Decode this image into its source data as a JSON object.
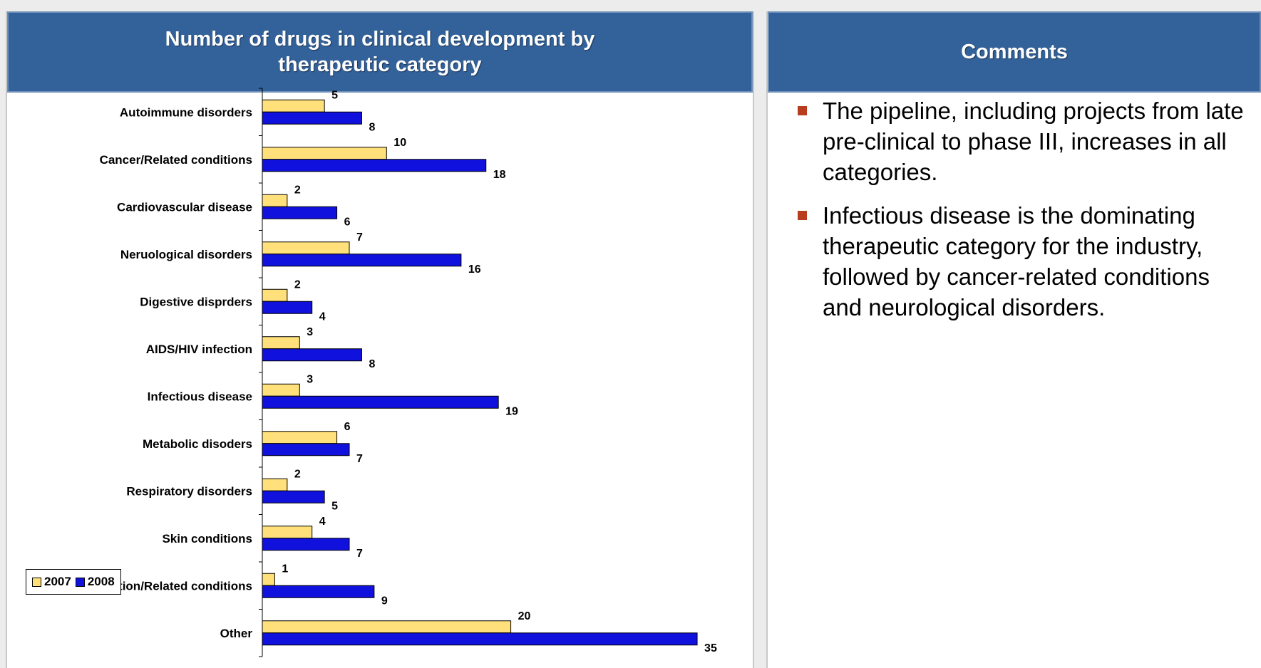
{
  "chart_panel": {
    "title": "Number of drugs in clinical development by therapeutic category"
  },
  "comments_panel": {
    "title": "Comments",
    "items": [
      "The pipeline, including projects from late pre-clinical to phase III, increases in all categories.",
      "Infectious disease is the dominating therapeutic category for the industry, followed by cancer-related conditions and neurological disorders."
    ]
  },
  "colors": {
    "header": "#33629a",
    "bar_2007": "#ffe07a",
    "bar_2008": "#1111dd",
    "bullet": "#b83c1e"
  },
  "chart_data": {
    "type": "bar",
    "orientation": "horizontal",
    "title": "Number of drugs in clinical development by therapeutic category",
    "categories": [
      "Autoimmune disorders",
      "Cancer/Related conditions",
      "Cardiovascular disease",
      "Neruological disorders",
      "Digestive disprders",
      "AIDS/HIV infection",
      "Infectious disease",
      "Metabolic disoders",
      "Respiratory disorders",
      "Skin conditions",
      "Transplantation/Related conditions",
      "Other"
    ],
    "series": [
      {
        "name": "2007",
        "values": [
          5,
          10,
          2,
          7,
          2,
          3,
          3,
          6,
          2,
          4,
          1,
          20
        ]
      },
      {
        "name": "2008",
        "values": [
          8,
          18,
          6,
          16,
          4,
          8,
          19,
          7,
          5,
          7,
          9,
          35
        ]
      }
    ],
    "xlim": [
      0,
      35
    ],
    "legend": {
      "position": "bottom-left",
      "labels": [
        "2007",
        "2008"
      ]
    },
    "grid": false
  }
}
